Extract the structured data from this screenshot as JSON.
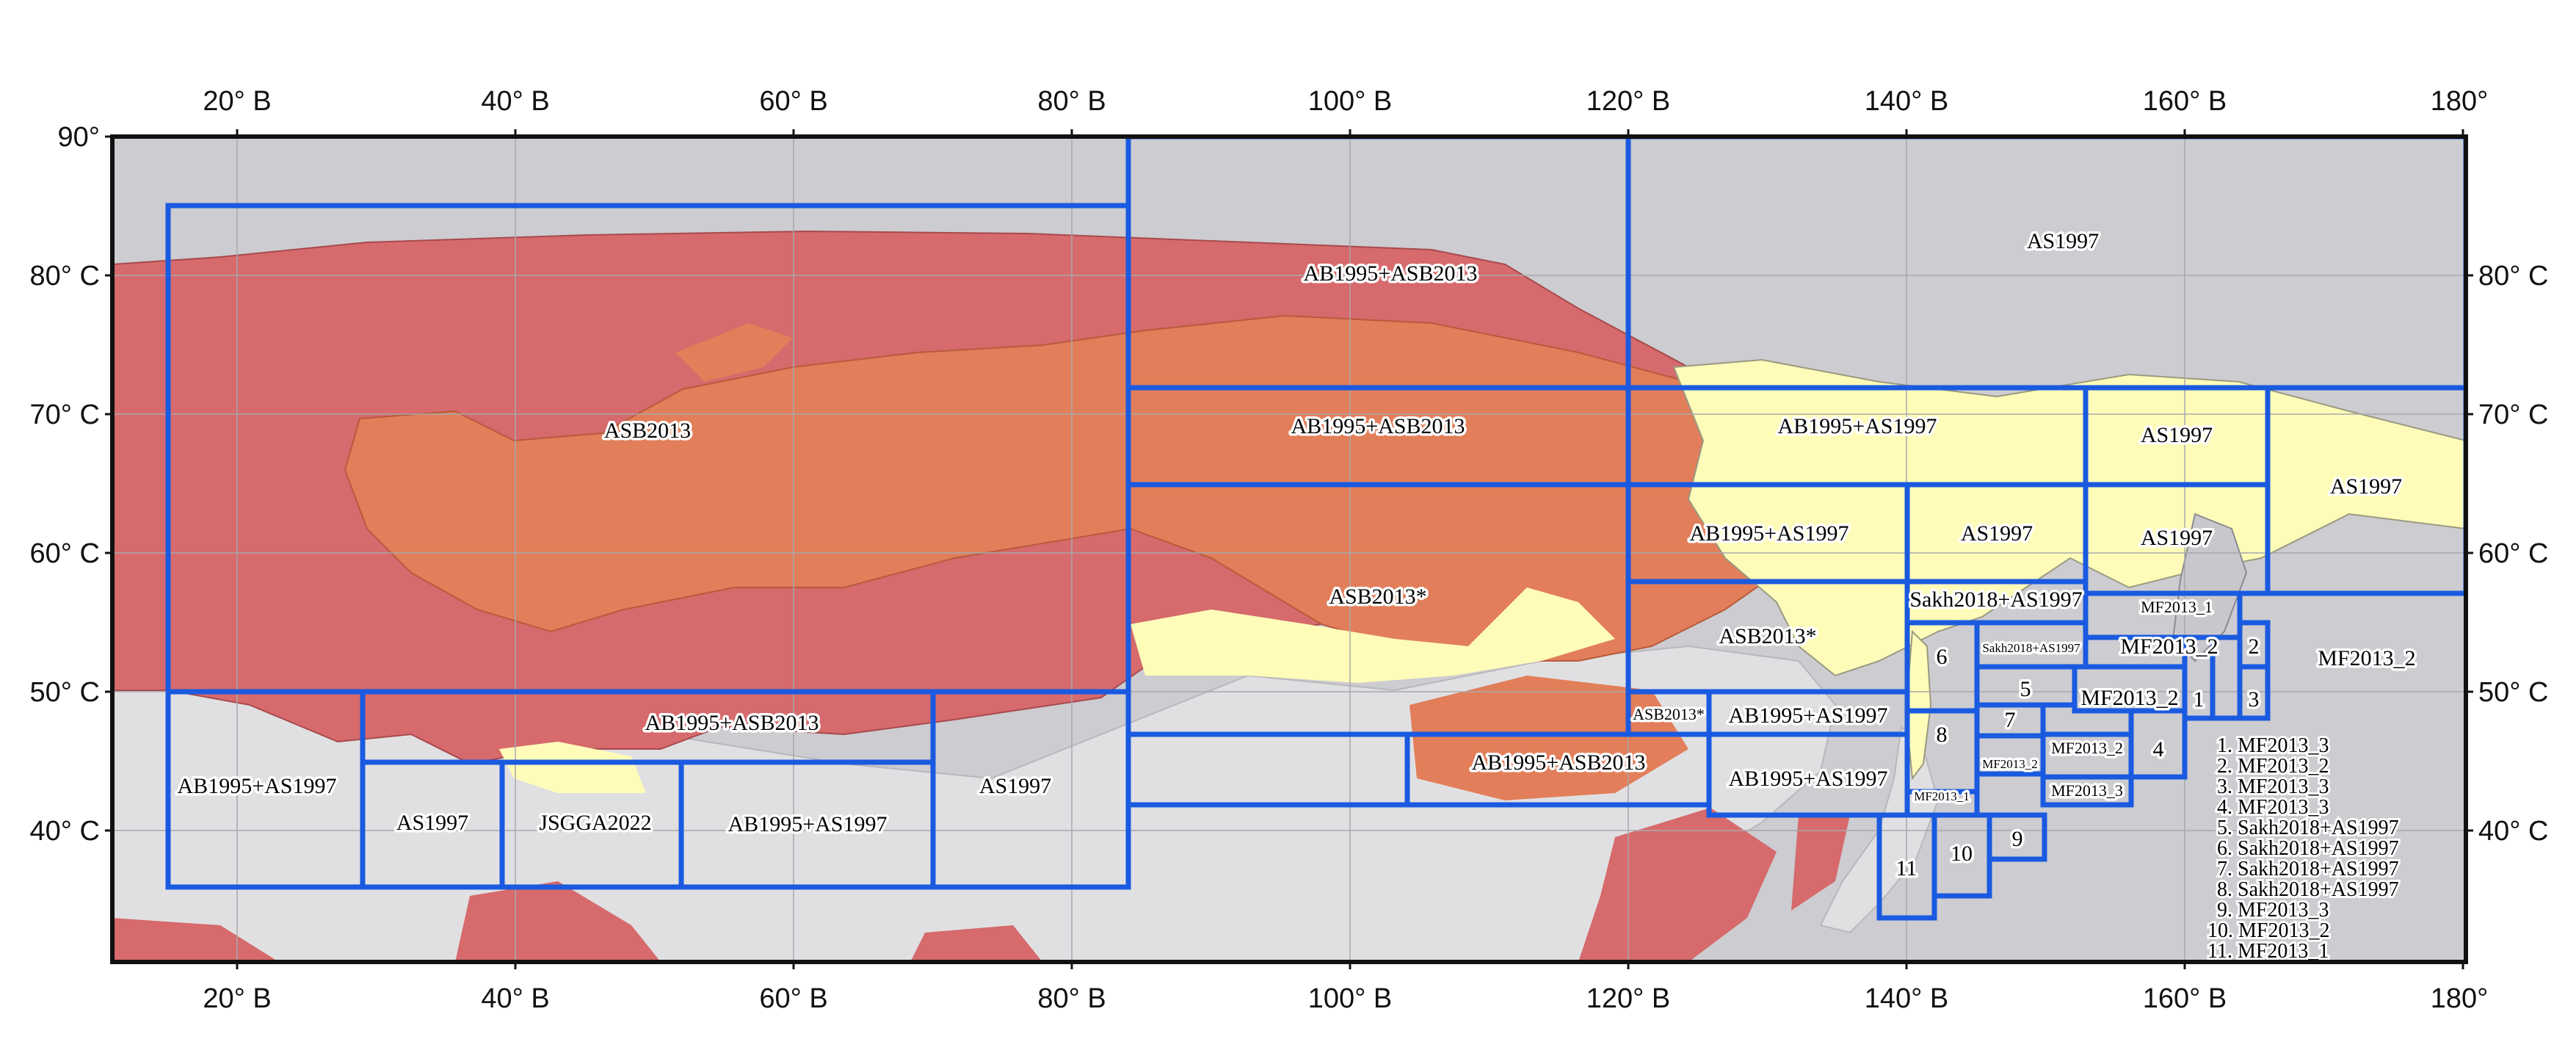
{
  "axes": {
    "top_ticks": [
      "20° В",
      "40° В",
      "60° В",
      "80° В",
      "100° В",
      "120° В",
      "140° В",
      "160° В",
      "180°"
    ],
    "bottom_ticks": [
      "20° В",
      "40° В",
      "60° В",
      "80° В",
      "100° В",
      "120° В",
      "140° В",
      "160° В",
      "180°"
    ],
    "left_ticks": [
      "90°",
      "80° С",
      "70° С",
      "60° С",
      "50° С",
      "40° С"
    ],
    "right_ticks": [
      "80° С",
      "70° С",
      "60° С",
      "50° С",
      "40° С"
    ]
  },
  "regions": [
    {
      "label": "AS1997"
    },
    {
      "label": "AB1995+ASB2013"
    },
    {
      "label": "ASB2013"
    },
    {
      "label": "AB1995+ASB2013"
    },
    {
      "label": "AB1995+AS1997"
    },
    {
      "label": "AS1997"
    },
    {
      "label": "AS1997"
    },
    {
      "label": "ASB2013*"
    },
    {
      "label": "AB1995+AS1997"
    },
    {
      "label": "AS1997"
    },
    {
      "label": "AS1997"
    },
    {
      "label": "Sakh2018+AS1997"
    },
    {
      "label": "MF2013_1"
    },
    {
      "label": "ASB2013*"
    },
    {
      "label": "Sakh2018+AS1997"
    },
    {
      "label": "MF2013_2"
    },
    {
      "label": "2"
    },
    {
      "label": "MF2013_2"
    },
    {
      "label": "6"
    },
    {
      "label": "5"
    },
    {
      "label": "MF2013_2"
    },
    {
      "label": "1"
    },
    {
      "label": "3"
    },
    {
      "label": "AB1995+ASB2013"
    },
    {
      "label": "ASB2013*"
    },
    {
      "label": "AB1995+AS1997"
    },
    {
      "label": "7"
    },
    {
      "label": "8"
    },
    {
      "label": "AB1995+AS1997"
    },
    {
      "label": "AS1997"
    },
    {
      "label": "JSGGA2022"
    },
    {
      "label": "AB1995+AS1997"
    },
    {
      "label": "AS1997"
    },
    {
      "label": "AB1995+ASB2013"
    },
    {
      "label": "AB1995+AS1997"
    },
    {
      "label": "MF2013_2"
    },
    {
      "label": "MF2013_2"
    },
    {
      "label": "4"
    },
    {
      "label": "MF2013_1"
    },
    {
      "label": "MF2013_3"
    },
    {
      "label": "9"
    },
    {
      "label": "10"
    },
    {
      "label": "11"
    }
  ],
  "legend": [
    "1. MF2013_3",
    "2. MF2013_2",
    "3. MF2013_3",
    "4. MF2013_3",
    "5. Sakh2018+AS1997",
    "6. Sakh2018+AS1997",
    "7. Sakh2018+AS1997",
    "8. Sakh2018+AS1997",
    "9. MF2013_3",
    "10. MF2013_2",
    "11. MF2013_1"
  ],
  "colors": {
    "ocean": "#ccccd1",
    "land_outside": "#e0e0e2",
    "zone_dark_red": "#d66a6c",
    "zone_orange": "#e27e5a",
    "zone_yellow": "#fffcb9",
    "box_outline": "#1a5ae0"
  }
}
